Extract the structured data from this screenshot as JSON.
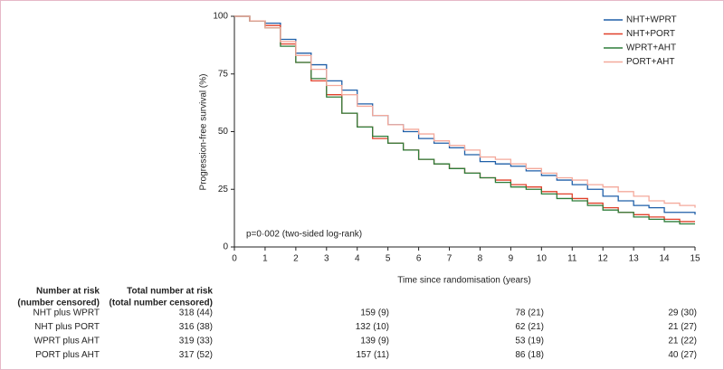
{
  "chart_data": {
    "type": "step",
    "x_label": "Time since randomisation (years)",
    "y_label": "Progression-free survival (%)",
    "annotation": "p=0·002 (two-sided log-rank)",
    "x": [
      0,
      0.5,
      1,
      1.5,
      2,
      2.5,
      3,
      3.5,
      4,
      4.5,
      5,
      5.5,
      6,
      6.5,
      7,
      7.5,
      8,
      8.5,
      9,
      9.5,
      10,
      10.5,
      11,
      11.5,
      12,
      12.5,
      13,
      13.5,
      14,
      14.5,
      15
    ],
    "series": [
      {
        "name": "NHT+WPRT",
        "color": "#1f5fa8",
        "values": [
          100,
          98,
          97,
          90,
          84,
          79,
          72,
          68,
          62,
          57,
          53,
          50,
          47,
          45,
          43,
          40,
          37,
          36,
          35,
          33,
          31,
          29,
          27,
          25,
          22,
          20,
          18,
          17,
          15,
          15,
          14
        ]
      },
      {
        "name": "NHT+PORT",
        "color": "#e0402a",
        "values": [
          100,
          98,
          96,
          88,
          80,
          72,
          66,
          58,
          52,
          47,
          45,
          42,
          38,
          36,
          34,
          32,
          30,
          29,
          27,
          26,
          24,
          23,
          21,
          19,
          17,
          15,
          14,
          13,
          12,
          11,
          11
        ]
      },
      {
        "name": "WPRT+AHT",
        "color": "#2e7d3a",
        "values": [
          100,
          98,
          95,
          87,
          80,
          73,
          65,
          58,
          52,
          48,
          45,
          42,
          38,
          36,
          34,
          32,
          30,
          28,
          26,
          25,
          23,
          21,
          20,
          18,
          16,
          15,
          13,
          12,
          11,
          10,
          10
        ]
      },
      {
        "name": "PORT+AHT",
        "color": "#f4a99b",
        "values": [
          100,
          98,
          95,
          89,
          83,
          77,
          70,
          66,
          61,
          57,
          53,
          51,
          49,
          46,
          44,
          42,
          39,
          38,
          36,
          34,
          32,
          30,
          29,
          27,
          26,
          24,
          22,
          20,
          19,
          18,
          17
        ]
      }
    ],
    "xlim": [
      0,
      15
    ],
    "xticks": [
      0,
      1,
      2,
      3,
      4,
      5,
      6,
      7,
      8,
      9,
      10,
      11,
      12,
      13,
      14,
      15
    ],
    "ylim": [
      0,
      100
    ],
    "yticks": [
      0,
      25,
      50,
      75,
      100
    ],
    "legend": "top-right",
    "risk_table": {
      "header_left": [
        "Number at risk",
        "(number censored)"
      ],
      "header_total": [
        "Total number at risk",
        "(total number censored)"
      ],
      "rows": [
        {
          "label": "NHT plus WPRT",
          "cells": [
            "318 (44)",
            "159 (9)",
            "78 (21)",
            "29 (30)"
          ]
        },
        {
          "label": "NHT plus PORT",
          "cells": [
            "316 (38)",
            "132 (10)",
            "62 (21)",
            "21 (27)"
          ]
        },
        {
          "label": "WPRT plus AHT",
          "cells": [
            "319 (33)",
            "139 (9)",
            "53 (19)",
            "21 (22)"
          ]
        },
        {
          "label": "PORT plus AHT",
          "cells": [
            "317 (52)",
            "157 (11)",
            "86 (18)",
            "40 (27)"
          ]
        }
      ]
    }
  }
}
